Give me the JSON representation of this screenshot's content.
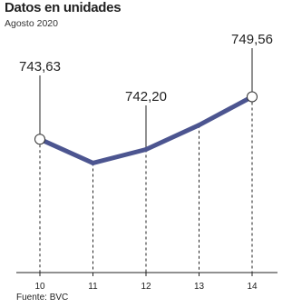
{
  "chart_data": {
    "type": "line",
    "title": "Datos en unidades",
    "subtitle": "Agosto 2020",
    "source": "Fuente: BVC",
    "xlabel": "",
    "ylabel": "",
    "categories": [
      "10",
      "11",
      "12",
      "13",
      "14"
    ],
    "values": [
      743.63,
      740.3,
      742.2,
      745.6,
      749.56
    ],
    "value_labels": [
      "743,63",
      "",
      "742,20",
      "",
      "749,56"
    ],
    "marked_points": [
      0,
      4
    ],
    "ylim": [
      725,
      758
    ],
    "grid": false,
    "legend": "none",
    "colors": {
      "line": "#4c5590",
      "marker_fill": "#ffffff",
      "guides": "#222222",
      "axis": "#222222"
    }
  }
}
